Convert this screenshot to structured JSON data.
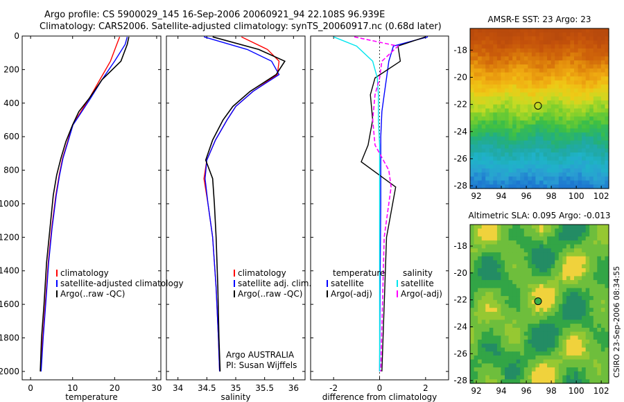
{
  "header": {
    "line1": "Argo profile: CS 5900029_145 16-Sep-2006 20060921_94 22.108S 96.939E",
    "line2": "Climatology: CARS2006. Satellite-adjusted climatology: synTS_20060917.nc (0.68d later)"
  },
  "side_label": "CSIRO 23-Sep-2006 08:34:55",
  "colors": {
    "clim": "#ff0000",
    "sat": "#0000ff",
    "argo": "#000000",
    "sat_sal": "#00e5ee",
    "argo_sal": "#ff00ff"
  },
  "chart_data": [
    {
      "type": "line",
      "id": "temperature",
      "xlabel": "temperature",
      "xlim": [
        -2,
        31
      ],
      "ylim": [
        2050,
        0
      ],
      "xticks": [
        0,
        10,
        20,
        30
      ],
      "yticks": [
        0,
        200,
        400,
        600,
        800,
        1000,
        1200,
        1400,
        1600,
        1800,
        2000
      ],
      "legend": [
        "climatology",
        "satellite-adjusted climatology",
        "Argo(..raw -QC)"
      ],
      "series": [
        {
          "name": "climatology",
          "color": "#ff0000",
          "x": [
            21.2,
            20.5,
            19.0,
            16.5,
            14.0,
            12.0,
            10.0,
            8.8,
            7.6,
            6.8,
            6.0,
            5.0,
            4.2,
            3.5,
            2.9,
            2.4
          ],
          "y": [
            5,
            50,
            150,
            260,
            370,
            450,
            530,
            630,
            730,
            830,
            950,
            1150,
            1350,
            1600,
            1800,
            2000
          ]
        },
        {
          "name": "satellite-adjusted climatology",
          "color": "#0000ff",
          "x": [
            23.0,
            22.5,
            20.0,
            17.0,
            14.3,
            12.2,
            10.1,
            8.9,
            7.7,
            6.9,
            6.1,
            5.1,
            4.3,
            3.6,
            3.0,
            2.5
          ],
          "y": [
            5,
            50,
            150,
            260,
            370,
            450,
            530,
            630,
            730,
            830,
            950,
            1150,
            1350,
            1600,
            1800,
            2000
          ]
        },
        {
          "name": "Argo(..raw -QC)",
          "color": "#000000",
          "x": [
            23.4,
            23.0,
            21.5,
            17.0,
            14.0,
            11.5,
            10.0,
            8.4,
            7.2,
            6.2,
            5.4,
            4.6,
            3.8,
            3.2,
            2.6,
            2.3
          ],
          "y": [
            5,
            50,
            150,
            260,
            370,
            450,
            530,
            630,
            730,
            830,
            950,
            1150,
            1350,
            1600,
            1800,
            2000
          ]
        }
      ]
    },
    {
      "type": "line",
      "id": "salinity",
      "xlabel": "salinity",
      "xlim": [
        33.8,
        36.2
      ],
      "ylim": [
        2050,
        0
      ],
      "xticks": [
        34,
        34.5,
        35,
        35.5,
        36
      ],
      "legend": [
        "climatology",
        "satellite adj. clim.",
        "Argo(..raw -QC)"
      ],
      "annotation": [
        "Argo AUSTRALIA",
        "PI: Susan Wijffels"
      ],
      "series": [
        {
          "name": "climatology",
          "color": "#ff0000",
          "x": [
            35.1,
            35.55,
            35.75,
            35.72,
            35.3,
            35.0,
            34.85,
            34.65,
            34.5,
            34.45,
            34.52,
            34.6,
            34.66,
            34.7,
            34.72
          ],
          "y": [
            5,
            80,
            150,
            230,
            330,
            420,
            500,
            620,
            740,
            850,
            1000,
            1200,
            1500,
            1800,
            2000
          ]
        },
        {
          "name": "satellite adj. clim.",
          "color": "#0000ff",
          "x": [
            34.45,
            35.2,
            35.62,
            35.75,
            35.3,
            35.0,
            34.85,
            34.65,
            34.5,
            34.47,
            34.52,
            34.6,
            34.66,
            34.7,
            34.72
          ],
          "y": [
            5,
            80,
            150,
            230,
            330,
            420,
            500,
            620,
            740,
            850,
            1000,
            1200,
            1500,
            1800,
            2000
          ]
        },
        {
          "name": "Argo(..raw -QC)",
          "color": "#000000",
          "x": [
            34.6,
            35.4,
            35.85,
            35.7,
            35.25,
            34.95,
            34.78,
            34.6,
            34.48,
            34.6,
            34.63,
            34.66,
            34.69,
            34.71,
            34.73
          ],
          "y": [
            5,
            80,
            150,
            230,
            330,
            420,
            500,
            620,
            740,
            850,
            1000,
            1200,
            1500,
            1800,
            2000
          ]
        }
      ]
    },
    {
      "type": "line",
      "id": "difference",
      "xlabel": "difference from climatology",
      "xlim": [
        -3,
        3
      ],
      "ylim": [
        2050,
        0
      ],
      "xticks": [
        -2,
        0,
        2
      ],
      "legend_temp_title": "temperature",
      "legend_sal_title": "salinity",
      "legend": [
        "satellite",
        "Argo(-adj)",
        "satellite",
        "Argo(-adj)"
      ],
      "series": [
        {
          "name": "satellite",
          "color": "#0000ff",
          "x": [
            2.1,
            0.6,
            0.4,
            0.3,
            0.2,
            0.1,
            0.05,
            0.05,
            0.05,
            0.02,
            0.0
          ],
          "y": [
            5,
            60,
            150,
            250,
            350,
            450,
            600,
            800,
            1000,
            1500,
            2000
          ]
        },
        {
          "name": "Argo(-adj)",
          "color": "#000000",
          "x": [
            2.0,
            0.8,
            0.9,
            -0.2,
            -0.4,
            -0.3,
            -0.5,
            -0.8,
            0.7,
            0.3,
            0.1
          ],
          "y": [
            5,
            60,
            150,
            250,
            350,
            500,
            650,
            750,
            900,
            1200,
            2000
          ]
        },
        {
          "name": "satellite",
          "color": "#00e5ee",
          "x": [
            -2.0,
            -1.0,
            -0.3,
            -0.1,
            -0.05,
            -0.05,
            0.0,
            0.0,
            0.0,
            0.0,
            0.0
          ],
          "y": [
            5,
            60,
            150,
            250,
            350,
            500,
            650,
            800,
            1000,
            1500,
            2000
          ]
        },
        {
          "name": "Argo(-adj)",
          "color": "#ff00ff",
          "x": [
            -1.1,
            0.8,
            0.1,
            0.0,
            -0.2,
            -0.3,
            -0.2,
            0.4,
            0.5,
            0.2,
            0.05
          ],
          "y": [
            5,
            60,
            150,
            250,
            350,
            500,
            650,
            800,
            900,
            1200,
            2000
          ]
        }
      ]
    },
    {
      "type": "heatmap",
      "id": "sst",
      "title": "AMSR-E SST: 23  Argo: 23",
      "xlim": [
        91.5,
        102.6
      ],
      "ylim": [
        -28.2,
        -16.4
      ],
      "xticks": [
        92,
        94,
        96,
        98,
        100,
        102
      ],
      "yticks": [
        -18,
        -20,
        -22,
        -24,
        -26,
        -28
      ],
      "marker": {
        "lon": 96.94,
        "lat": -22.1
      },
      "rows": [
        "#b84a0c",
        "#c4520b",
        "#d0660a",
        "#e28a0c",
        "#f0ad12",
        "#eecb16",
        "#c6da24",
        "#7ecf2c",
        "#3dbf45",
        "#24b07a",
        "#20a9a8",
        "#1fb3c8",
        "#2aa0d2",
        "#1d78d0"
      ]
    },
    {
      "type": "heatmap",
      "id": "sla",
      "title": "Altimetric SLA: 0.095  Argo: -0.013",
      "xlim": [
        91.5,
        102.6
      ],
      "ylim": [
        -28.2,
        -16.4
      ],
      "xticks": [
        92,
        94,
        96,
        98,
        100,
        102
      ],
      "yticks": [
        -18,
        -20,
        -22,
        -24,
        -26,
        -28
      ],
      "marker": {
        "lon": 96.94,
        "lat": -22.1
      }
    }
  ]
}
